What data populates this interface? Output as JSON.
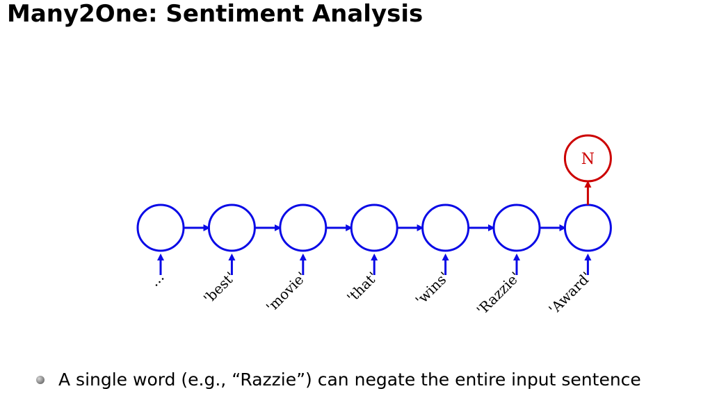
{
  "title": "Many2One: Sentiment Analysis",
  "diagram": {
    "colors": {
      "rnn": "#0a0ae6",
      "output": "#cc0000"
    },
    "nodes": [
      {
        "id": "h1",
        "input_label": "..."
      },
      {
        "id": "h2",
        "input_label": "'best'"
      },
      {
        "id": "h3",
        "input_label": "'movie'"
      },
      {
        "id": "h4",
        "input_label": "'that'"
      },
      {
        "id": "h5",
        "input_label": "'wins'"
      },
      {
        "id": "h6",
        "input_label": "'Razzie'"
      },
      {
        "id": "h7",
        "input_label": "'Award'"
      }
    ],
    "output_label": "N"
  },
  "bullets": [
    "A single word (e.g., “Razzie”) can negate the entire input sentence"
  ]
}
